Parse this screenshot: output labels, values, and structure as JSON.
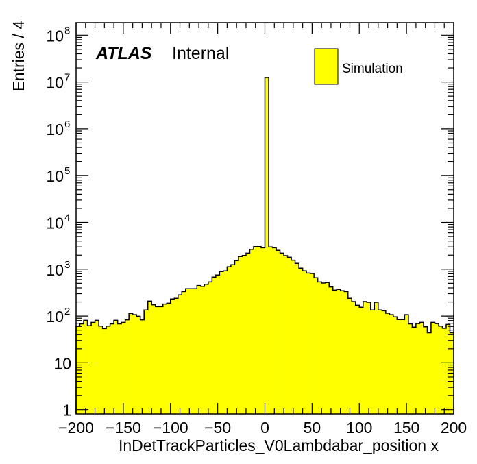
{
  "chart_data": {
    "type": "bar",
    "histogram": true,
    "title": "",
    "xlabel": "InDetTrackParticles_V0Lambdabar_position x",
    "ylabel": "Entries / 4",
    "xlim": [
      -200,
      200
    ],
    "ylim": [
      1,
      180000000
    ],
    "yscale": "log",
    "bin_width": 4,
    "x_ticks": [
      "−200",
      "−150",
      "−100",
      "−50",
      "0",
      "50",
      "100",
      "150",
      "200"
    ],
    "x_tick_values": [
      -200,
      -150,
      -100,
      -50,
      0,
      50,
      100,
      150,
      200
    ],
    "y_ticks": [
      {
        "base": "1",
        "exp": ""
      },
      {
        "base": "10",
        "exp": ""
      },
      {
        "base": "10",
        "exp": "2"
      },
      {
        "base": "10",
        "exp": "3"
      },
      {
        "base": "10",
        "exp": "4"
      },
      {
        "base": "10",
        "exp": "5"
      },
      {
        "base": "10",
        "exp": "6"
      },
      {
        "base": "10",
        "exp": "7"
      },
      {
        "base": "10",
        "exp": "8"
      }
    ],
    "series": [
      {
        "name": "Simulation",
        "color": "#ffff00",
        "edge_color": "#000000",
        "values": [
          61,
          68,
          81,
          62,
          73,
          81,
          61,
          54,
          61,
          68,
          81,
          68,
          73,
          83,
          114,
          107,
          99,
          83,
          135,
          208,
          174,
          159,
          159,
          180,
          188,
          231,
          239,
          283,
          334,
          383,
          383,
          383,
          447,
          432,
          478,
          535,
          679,
          751,
          889,
          919,
          1125,
          1245,
          1524,
          1866,
          1968,
          2207,
          2668,
          3053,
          3053,
          2890,
          12500000,
          2990,
          2890,
          2528,
          2207,
          1950,
          1803,
          1556,
          1332,
          1052,
          919,
          830,
          811,
          656,
          535,
          506,
          518,
          418,
          357,
          370,
          346,
          334,
          239,
          204,
          170,
          154,
          204,
          197,
          135,
          197,
          135,
          130,
          115,
          107,
          96,
          84,
          84,
          107,
          68,
          58,
          69,
          73,
          59,
          44,
          73,
          69,
          61,
          55,
          66,
          44
        ]
      }
    ],
    "legend": {
      "placement": "top-right",
      "entries": [
        "Simulation"
      ]
    },
    "annotations": {
      "atlas": "ATLAS",
      "status": "Internal"
    },
    "grid": false
  }
}
